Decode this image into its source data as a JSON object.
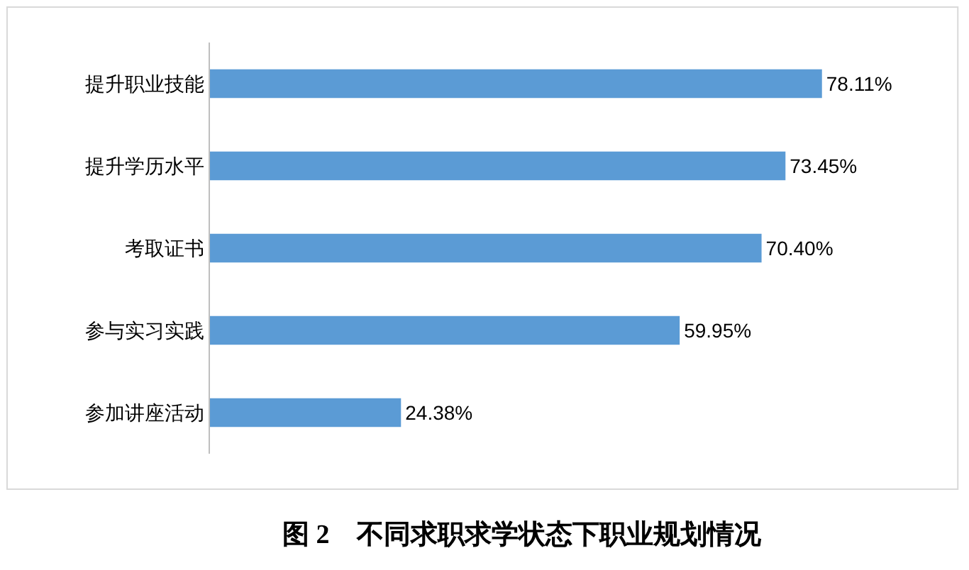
{
  "chart_data": {
    "type": "bar",
    "orientation": "horizontal",
    "categories": [
      "提升职业技能",
      "提升学历水平",
      "考取证书",
      "参与实习实践",
      "参加讲座活动"
    ],
    "values": [
      78.11,
      73.45,
      70.4,
      59.95,
      24.38
    ],
    "value_labels": [
      "78.11%",
      "73.45%",
      "70.40%",
      "59.95%",
      "24.38%"
    ],
    "color": "#5b9bd5",
    "annotations": [
      "图 2　不同求职求学状态下职业规划情况"
    ]
  }
}
